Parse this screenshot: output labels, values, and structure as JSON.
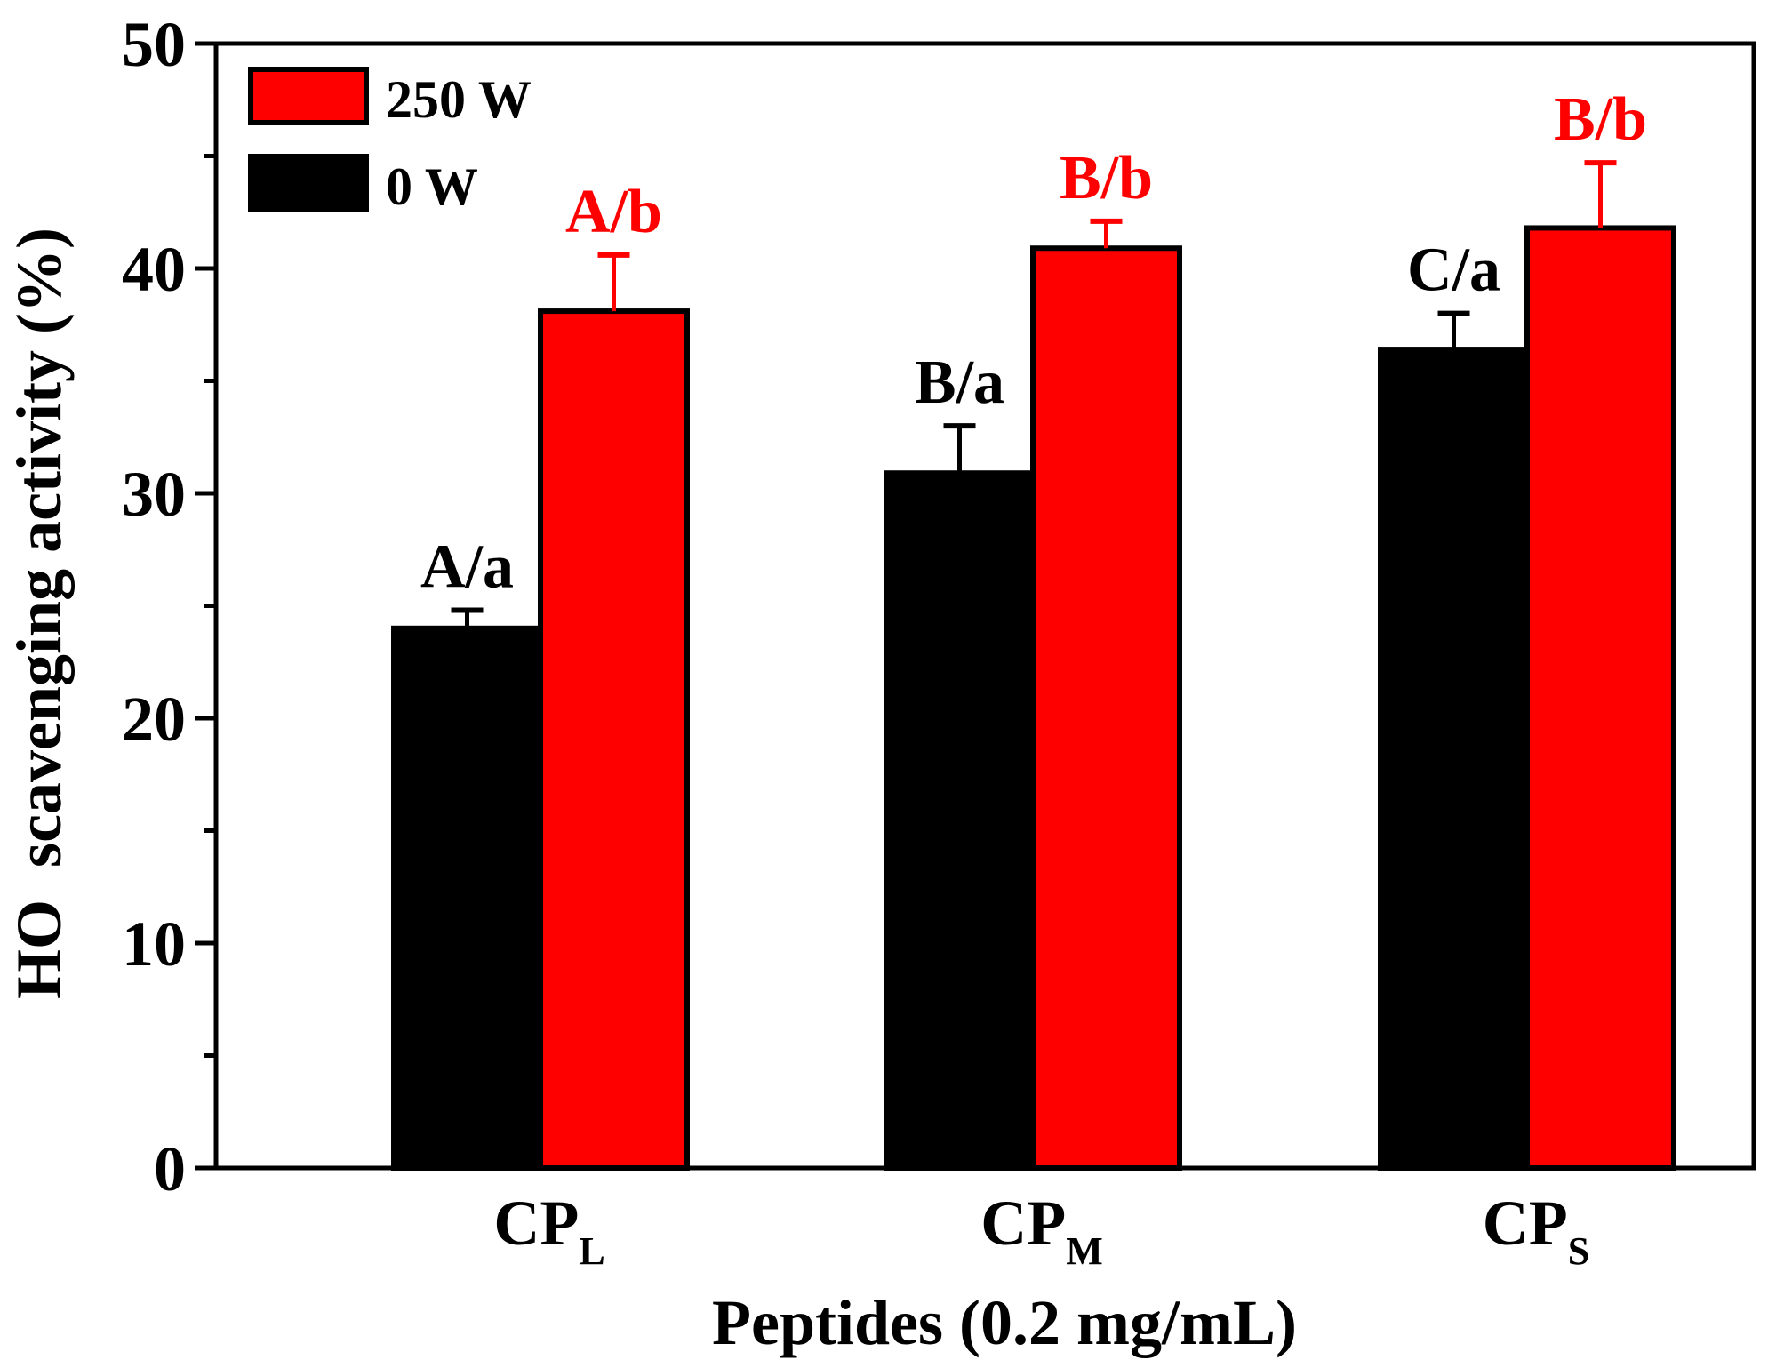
{
  "chart_data": {
    "type": "bar",
    "title": "",
    "xlabel": "Peptides (0.2 mg/mL)",
    "ylabel": "HO  scavenging activity (%)",
    "ylim": [
      0,
      50
    ],
    "yticks": [
      0,
      10,
      20,
      30,
      40,
      50
    ],
    "minor_tick_step": 5,
    "categories": [
      {
        "base": "CP",
        "sub": "L"
      },
      {
        "base": "CP",
        "sub": "M"
      },
      {
        "base": "CP",
        "sub": "S"
      }
    ],
    "series": [
      {
        "name": "0 W",
        "color": "#000000",
        "values": [
          24.0,
          30.9,
          36.4
        ],
        "errors": [
          0.8,
          2.1,
          1.6
        ],
        "labels": [
          "A/a",
          "B/a",
          "C/a"
        ],
        "label_color": "#000000"
      },
      {
        "name": "250 W",
        "color": "#ff0000",
        "values": [
          38.1,
          40.9,
          41.8
        ],
        "errors": [
          2.5,
          1.2,
          2.9
        ],
        "labels": [
          "A/b",
          "B/b",
          "B/b"
        ],
        "label_color": "#ff0000"
      }
    ],
    "legend": {
      "position": "top-left",
      "order": [
        "250 W",
        "0 W"
      ]
    }
  }
}
